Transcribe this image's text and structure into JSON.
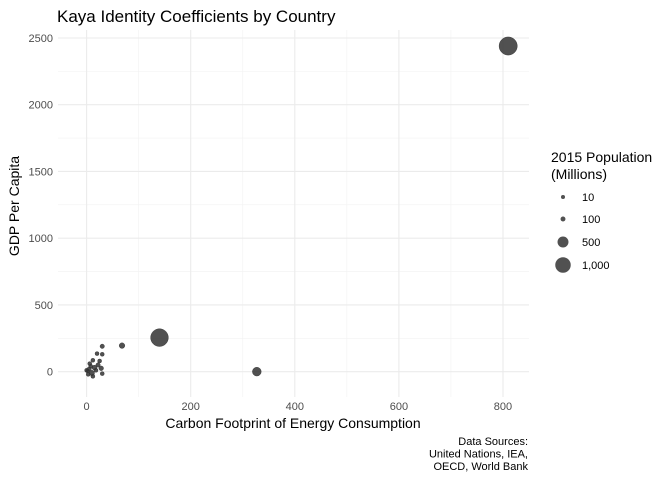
{
  "chart_data": {
    "type": "scatter",
    "title": "Kaya Identity Coefficients by Country",
    "xlabel": "Carbon Footprint of Energy Consumption",
    "ylabel": "GDP Per Capita",
    "xlim": [
      -55,
      850
    ],
    "ylim": [
      -190,
      2560
    ],
    "x_ticks": [
      0,
      200,
      400,
      600,
      800
    ],
    "x_tick_labels": [
      "0",
      "200",
      "400",
      "600",
      "800"
    ],
    "y_ticks": [
      0,
      500,
      1000,
      1500,
      2000,
      2500
    ],
    "y_tick_labels": [
      "0",
      "500",
      "1000",
      "1500",
      "2000",
      "2500"
    ],
    "grid": true,
    "legend": {
      "title": "2015 Population\n(Millions)",
      "position": "right",
      "entries": [
        {
          "label": "10",
          "value": 10
        },
        {
          "label": "100",
          "value": 100
        },
        {
          "label": "500",
          "value": 500
        },
        {
          "label": "1,000",
          "value": 1000
        }
      ]
    },
    "caption": "Data Sources:\nUnited Nations, IEA,\nOECD, World Bank",
    "point_color": "#333333",
    "point_opacity": 0.85,
    "points": [
      {
        "x": 810,
        "y": 2440,
        "population": 1370
      },
      {
        "x": 140,
        "y": 255,
        "population": 1300
      },
      {
        "x": 327,
        "y": 0,
        "population": 320
      },
      {
        "x": 68,
        "y": 195,
        "population": 130
      },
      {
        "x": 30,
        "y": 190,
        "population": 80
      },
      {
        "x": 30,
        "y": 130,
        "population": 50
      },
      {
        "x": 20,
        "y": 135,
        "population": 30
      },
      {
        "x": 12,
        "y": 85,
        "population": 60
      },
      {
        "x": 25,
        "y": 80,
        "population": 40
      },
      {
        "x": 22,
        "y": 50,
        "population": 80
      },
      {
        "x": 28,
        "y": 25,
        "population": 90
      },
      {
        "x": 15,
        "y": 30,
        "population": 100
      },
      {
        "x": 5,
        "y": 20,
        "population": 70
      },
      {
        "x": 8,
        "y": 40,
        "population": 25
      },
      {
        "x": 2,
        "y": 5,
        "population": 50
      },
      {
        "x": 10,
        "y": -10,
        "population": 120
      },
      {
        "x": 3,
        "y": -20,
        "population": 30
      },
      {
        "x": 12,
        "y": -35,
        "population": 40
      },
      {
        "x": 18,
        "y": 10,
        "population": 45
      },
      {
        "x": 6,
        "y": 60,
        "population": 20
      },
      {
        "x": 30,
        "y": -15,
        "population": 60
      },
      {
        "x": 0,
        "y": 10,
        "population": 15
      }
    ]
  }
}
